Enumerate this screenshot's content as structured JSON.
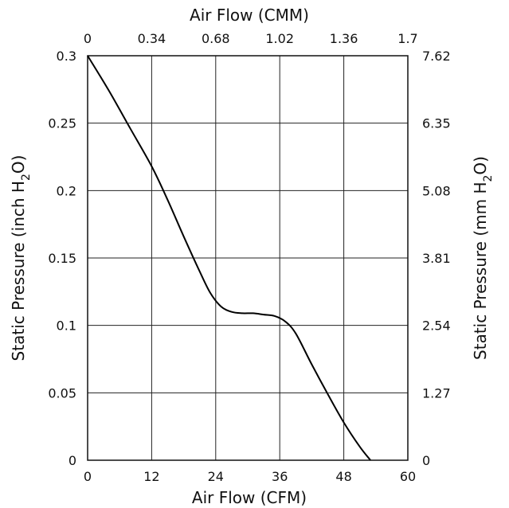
{
  "chart_data": {
    "type": "line",
    "xlabel_bottom": "Air Flow (CFM)",
    "xlabel_top": "Air Flow (CMM)",
    "ylabel_left": {
      "prefix": "Static Pressure (inch H",
      "sub": "2",
      "suffix": "O)"
    },
    "ylabel_right": {
      "prefix": "Static Pressure (mm H",
      "sub": "2",
      "suffix": "O)"
    },
    "xlim": [
      0,
      60
    ],
    "ylim": [
      0,
      0.3
    ],
    "x_ticks_bottom": [
      "0",
      "12",
      "24",
      "36",
      "48",
      "60"
    ],
    "x_ticks_top": [
      "0",
      "0.34",
      "0.68",
      "1.02",
      "1.36",
      "1.7"
    ],
    "y_ticks_left": [
      "0",
      "0.05",
      "0.1",
      "0.15",
      "0.2",
      "0.25",
      "0.3"
    ],
    "y_ticks_right": [
      "0",
      "1.27",
      "2.54",
      "3.81",
      "5.08",
      "6.35",
      "7.62"
    ],
    "grid": true,
    "series": [
      {
        "x": [
          0,
          4,
          8,
          12,
          15,
          18,
          21,
          23,
          25,
          27,
          29,
          31,
          33,
          35,
          37,
          39,
          42,
          45,
          48,
          51,
          53
        ],
        "y": [
          0.3,
          0.274,
          0.246,
          0.218,
          0.193,
          0.166,
          0.14,
          0.124,
          0.114,
          0.11,
          0.109,
          0.109,
          0.108,
          0.107,
          0.103,
          0.094,
          0.071,
          0.049,
          0.028,
          0.01,
          0.0
        ]
      }
    ]
  }
}
